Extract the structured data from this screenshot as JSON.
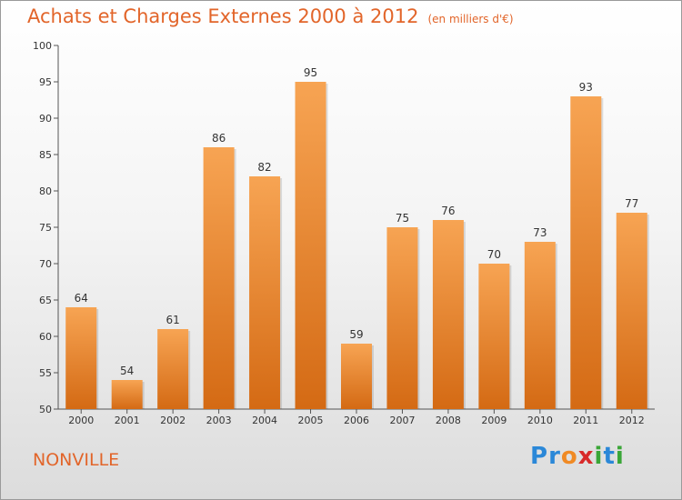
{
  "header": {
    "title": "Achats et Charges Externes 2000 à 2012",
    "subtitle": "(en milliers d'€)"
  },
  "location": "NONVILLE",
  "logo": {
    "text": "Proxiti",
    "letters": [
      "P",
      "r",
      "o",
      "x",
      "i",
      "t",
      "i"
    ],
    "colors": [
      "#2b88d8",
      "#2b88d8",
      "#f08a24",
      "#d82a2a",
      "#3aa637",
      "#2b88d8",
      "#3aa637"
    ]
  },
  "colors": {
    "bar_top": "#f7a453",
    "bar_bottom": "#d46a14",
    "title": "#e2652a"
  },
  "chart_data": {
    "type": "bar",
    "categories": [
      "2000",
      "2001",
      "2002",
      "2003",
      "2004",
      "2005",
      "2006",
      "2007",
      "2008",
      "2009",
      "2010",
      "2011",
      "2012"
    ],
    "values": [
      64,
      54,
      61,
      86,
      82,
      95,
      59,
      75,
      76,
      70,
      73,
      93,
      77
    ],
    "ylim": [
      50,
      100
    ],
    "yticks": [
      50,
      55,
      60,
      65,
      70,
      75,
      80,
      85,
      90,
      95,
      100
    ],
    "grid": false,
    "legend": "none"
  }
}
